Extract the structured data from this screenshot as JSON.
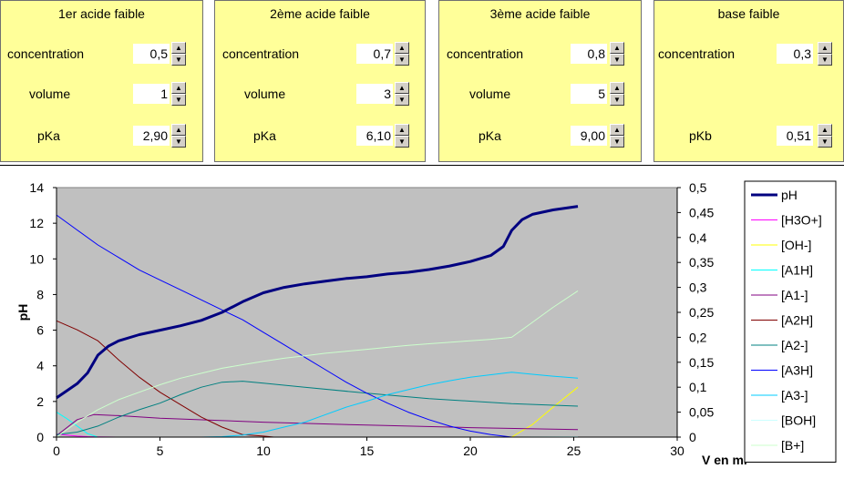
{
  "panels": [
    {
      "title": "1er acide faible",
      "rows": [
        {
          "label": "concentration",
          "value": "0,5"
        },
        {
          "label": "volume",
          "value": "1"
        },
        {
          "label": "pKa",
          "value": "2,90"
        }
      ]
    },
    {
      "title": "2ème acide faible",
      "rows": [
        {
          "label": "concentration",
          "value": "0,7"
        },
        {
          "label": "volume",
          "value": "3"
        },
        {
          "label": "pKa",
          "value": "6,10"
        }
      ]
    },
    {
      "title": "3ème acide faible",
      "rows": [
        {
          "label": "concentration",
          "value": "0,8"
        },
        {
          "label": "volume",
          "value": "5"
        },
        {
          "label": "pKa",
          "value": "9,00"
        }
      ]
    },
    {
      "title": "base faible",
      "rows": [
        {
          "label": "concentration",
          "value": "0,3"
        },
        {
          "label": "",
          "value": ""
        },
        {
          "label": "pKb",
          "value": "0,51"
        }
      ]
    }
  ],
  "chart_data": {
    "type": "line",
    "title": "",
    "xlabel": "V en ml",
    "ylabel": "pH",
    "xlim": [
      0,
      30
    ],
    "ylim": [
      0,
      14
    ],
    "y2lim": [
      0,
      0.5
    ],
    "xticks": [
      "0",
      "5",
      "10",
      "15",
      "20",
      "25",
      "30"
    ],
    "yticks": [
      "0",
      "2",
      "4",
      "6",
      "8",
      "10",
      "12",
      "14"
    ],
    "y2ticks": [
      "0",
      "0,05",
      "0,1",
      "0,15",
      "0,2",
      "0,25",
      "0,3",
      "0,35",
      "0,4",
      "0,45",
      "0,5"
    ],
    "plot_bg": "#c0c0c0",
    "legend_position": "right",
    "series": [
      {
        "name": "pH",
        "axis": "left",
        "color": "#000080",
        "width": 3,
        "x": [
          0,
          0.5,
          1,
          1.5,
          2,
          2.5,
          3,
          4,
          5,
          6,
          7,
          8,
          9,
          10,
          11,
          12,
          13,
          14,
          15,
          16,
          17,
          18,
          19,
          20,
          21,
          21.6,
          22,
          22.5,
          23,
          24,
          25.2
        ],
        "y": [
          2.2,
          2.6,
          3.0,
          3.6,
          4.6,
          5.1,
          5.4,
          5.75,
          6.0,
          6.25,
          6.55,
          7.0,
          7.6,
          8.1,
          8.4,
          8.6,
          8.75,
          8.9,
          9.0,
          9.15,
          9.25,
          9.4,
          9.6,
          9.85,
          10.2,
          10.7,
          11.6,
          12.2,
          12.5,
          12.75,
          12.95
        ]
      },
      {
        "name": "[H3O+]",
        "axis": "right",
        "color": "#ff00ff",
        "width": 1,
        "x": [
          0,
          0.5,
          1,
          1.5,
          2,
          3
        ],
        "y": [
          0.006,
          0.004,
          0.002,
          0.001,
          0.0005,
          0
        ]
      },
      {
        "name": "[OH-]",
        "axis": "right",
        "color": "#ffff00",
        "width": 1,
        "x": [
          22,
          23,
          24,
          25.2
        ],
        "y": [
          0,
          0.025,
          0.06,
          0.1
        ]
      },
      {
        "name": "[A1H]",
        "axis": "right",
        "color": "#00ffff",
        "width": 1,
        "x": [
          0,
          0.5,
          1,
          1.5,
          2
        ],
        "y": [
          0.05,
          0.037,
          0.022,
          0.007,
          0
        ]
      },
      {
        "name": "[A1-]",
        "axis": "right",
        "color": "#800080",
        "width": 1,
        "x": [
          0,
          1,
          1.8,
          3,
          5,
          10,
          15,
          20,
          25.2
        ],
        "y": [
          0.003,
          0.035,
          0.045,
          0.043,
          0.038,
          0.03,
          0.024,
          0.019,
          0.015
        ]
      },
      {
        "name": "[A2H]",
        "axis": "right",
        "color": "#800000",
        "width": 1,
        "x": [
          0,
          1,
          2,
          3,
          4,
          5,
          6,
          7,
          8,
          9,
          10,
          10.5
        ],
        "y": [
          0.233,
          0.215,
          0.193,
          0.155,
          0.12,
          0.09,
          0.065,
          0.04,
          0.02,
          0.005,
          0.002,
          0
        ]
      },
      {
        "name": "[A2-]",
        "axis": "right",
        "color": "#008080",
        "width": 1,
        "x": [
          0,
          1,
          2,
          3,
          4,
          5,
          6,
          7,
          8,
          9,
          10,
          12,
          15,
          18,
          20,
          22,
          25.2
        ],
        "y": [
          0.005,
          0.01,
          0.022,
          0.04,
          0.055,
          0.068,
          0.085,
          0.1,
          0.11,
          0.112,
          0.108,
          0.1,
          0.088,
          0.077,
          0.072,
          0.067,
          0.062
        ]
      },
      {
        "name": "[A3H]",
        "axis": "right",
        "color": "#0000ff",
        "width": 1,
        "x": [
          0,
          1,
          2,
          3,
          4,
          5,
          6,
          7,
          8,
          9,
          10,
          11,
          12,
          13,
          14,
          15,
          16,
          17,
          18,
          19,
          20,
          21,
          22
        ],
        "y": [
          0.445,
          0.415,
          0.385,
          0.36,
          0.335,
          0.315,
          0.295,
          0.275,
          0.255,
          0.235,
          0.21,
          0.185,
          0.16,
          0.135,
          0.11,
          0.088,
          0.068,
          0.05,
          0.035,
          0.022,
          0.012,
          0.005,
          0
        ]
      },
      {
        "name": "[A3-]",
        "axis": "right",
        "color": "#00ccff",
        "width": 1,
        "x": [
          7,
          8,
          9,
          10,
          11,
          12,
          13,
          14,
          15,
          16,
          17,
          18,
          19,
          20,
          21,
          22,
          23,
          24,
          25.2
        ],
        "y": [
          0,
          0.001,
          0.004,
          0.01,
          0.02,
          0.03,
          0.045,
          0.06,
          0.072,
          0.085,
          0.095,
          0.105,
          0.113,
          0.12,
          0.125,
          0.13,
          0.126,
          0.122,
          0.118
        ]
      },
      {
        "name": "[BOH]",
        "axis": "right",
        "color": "#ccffff",
        "width": 1,
        "x": [
          22,
          25.2
        ],
        "y": [
          0,
          0.001
        ]
      },
      {
        "name": "[B+]",
        "axis": "right",
        "color": "#ccffcc",
        "width": 1,
        "x": [
          0,
          1,
          2,
          3,
          4,
          5,
          6,
          7,
          8,
          9,
          10,
          11,
          12,
          13,
          14,
          15,
          16,
          17,
          18,
          19,
          20,
          21,
          22,
          23,
          24,
          25.2
        ],
        "y": [
          0,
          0.03,
          0.055,
          0.075,
          0.09,
          0.105,
          0.118,
          0.128,
          0.138,
          0.145,
          0.152,
          0.158,
          0.163,
          0.168,
          0.172,
          0.176,
          0.18,
          0.184,
          0.187,
          0.19,
          0.193,
          0.196,
          0.2,
          0.23,
          0.26,
          0.293
        ]
      }
    ]
  }
}
